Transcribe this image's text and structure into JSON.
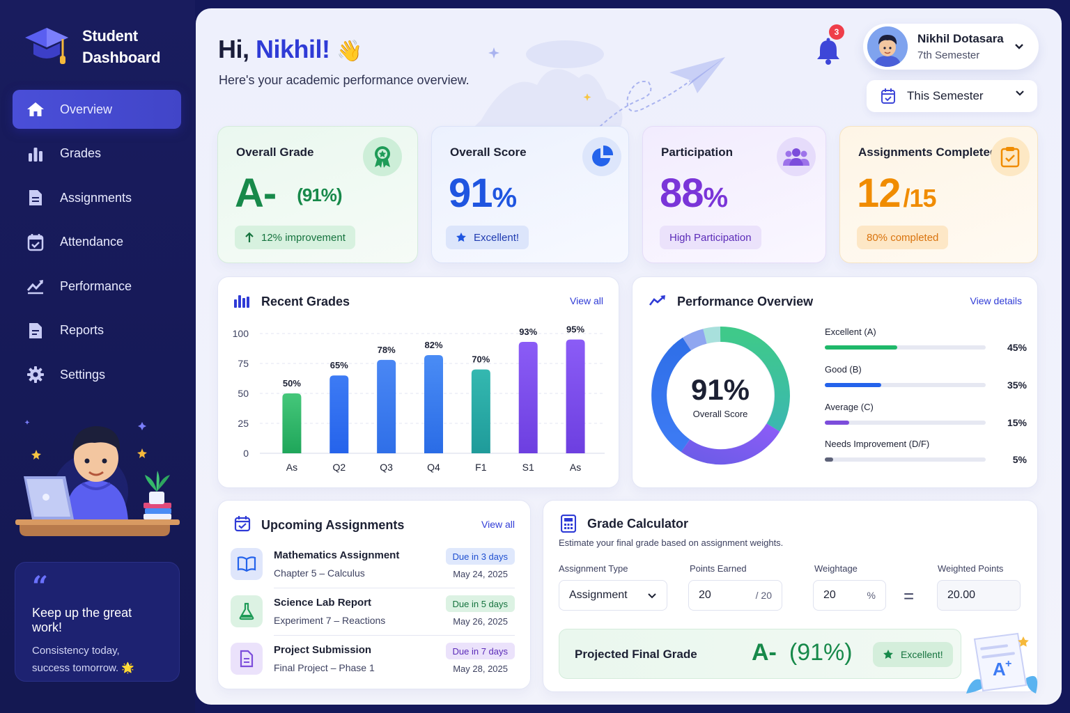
{
  "app": {
    "title_line1": "Student",
    "title_line2": "Dashboard"
  },
  "sidebar": {
    "items": [
      {
        "label": "Overview",
        "icon": "home-icon",
        "active": true
      },
      {
        "label": "Grades",
        "icon": "bar-chart-icon"
      },
      {
        "label": "Assignments",
        "icon": "document-icon"
      },
      {
        "label": "Attendance",
        "icon": "calendar-check-icon"
      },
      {
        "label": "Performance",
        "icon": "trend-chart-icon"
      },
      {
        "label": "Reports",
        "icon": "report-icon"
      },
      {
        "label": "Settings",
        "icon": "gear-icon"
      }
    ],
    "quote": {
      "title": "Keep up the great work!",
      "line1": "Consistency today,",
      "line2": "success tomorrow. 🌟"
    }
  },
  "header": {
    "greeting": "Hi,",
    "name": "Nikhil!",
    "wave": "👋",
    "subtitle": "Here's your academic performance overview.",
    "notifications": "3",
    "profile": {
      "name": "Nikhil Dotasara",
      "semester": "7th Semester"
    },
    "period": "This Semester"
  },
  "stats": {
    "grade": {
      "title": "Overall Grade",
      "value": "A-",
      "pct": "(91%)",
      "pill": "12% improvement"
    },
    "score": {
      "title": "Overall Score",
      "value": "91",
      "unit": "%",
      "pill": "Excellent!"
    },
    "participation": {
      "title": "Participation",
      "value": "88",
      "unit": "%",
      "pill": "High Participation"
    },
    "assignments": {
      "title": "Assignments Completed",
      "value": "12",
      "unit": "/15",
      "pill": "80% completed"
    }
  },
  "recent_grades": {
    "title": "Recent Grades",
    "view_all": "View all",
    "chart_data": {
      "type": "bar",
      "categories": [
        "As",
        "Q2",
        "Q3",
        "Q4",
        "F1",
        "S1",
        "As"
      ],
      "values": [
        50,
        65,
        78,
        82,
        70,
        93,
        95
      ],
      "value_labels": [
        "50%",
        "65%",
        "78%",
        "82%",
        "70%",
        "93%",
        "95%"
      ],
      "yticks": [
        "0",
        "25",
        "50",
        "75",
        "100"
      ],
      "ylim": [
        0,
        100
      ],
      "colors": [
        [
          "#45c77a",
          "#1fa65a"
        ],
        [
          "#3d7bf4",
          "#2563eb"
        ],
        [
          "#4a87f4",
          "#2f6fe8"
        ],
        [
          "#4a8cf5",
          "#2a6ce6"
        ],
        [
          "#34b8b0",
          "#1f9b9a"
        ],
        [
          "#8b5cf6",
          "#6d3fe0"
        ],
        [
          "#8b5cf6",
          "#6d3fe0"
        ]
      ],
      "grid": true
    }
  },
  "performance": {
    "title": "Performance Overview",
    "view_details": "View details",
    "center_value": "91%",
    "center_label": "Overall Score",
    "rows": [
      {
        "label": "Excellent (A)",
        "pct": "45%",
        "value": 45,
        "color": "#1fb86a"
      },
      {
        "label": "Good (B)",
        "pct": "35%",
        "value": 35,
        "color": "#2463eb"
      },
      {
        "label": "Average (C)",
        "pct": "15%",
        "value": 15,
        "color": "#7c4ddb"
      },
      {
        "label": "Needs Improvement (D/F)",
        "pct": "5%",
        "value": 5,
        "color": "#5d6278"
      }
    ]
  },
  "upcoming": {
    "title": "Upcoming Assignments",
    "view_all": "View all",
    "items": [
      {
        "title": "Mathematics Assignment",
        "sub": "Chapter 5 – Calculus",
        "due": "Due in 3 days",
        "date": "May 24, 2025",
        "icon": "book-icon"
      },
      {
        "title": "Science Lab Report",
        "sub": "Experiment 7 – Reactions",
        "due": "Due in 5 days",
        "date": "May 26, 2025",
        "icon": "flask-icon"
      },
      {
        "title": "Project Submission",
        "sub": "Final Project – Phase 1",
        "due": "Due in 7 days",
        "date": "May 28, 2025",
        "icon": "file-icon"
      }
    ]
  },
  "calculator": {
    "title": "Grade Calculator",
    "subtitle": "Estimate your final grade based on assignment weights.",
    "labels": {
      "type": "Assignment Type",
      "earned": "Points Earned",
      "weight": "Weightage",
      "weighted": "Weighted Points"
    },
    "type_value": "Assignment",
    "earned_value": "20",
    "earned_total": "/ 20",
    "weight_value": "20",
    "weight_unit": "%",
    "equals": "=",
    "weighted_value": "20.00",
    "projected_label": "Projected Final Grade",
    "projected_grade": "A-",
    "projected_pct": "(91%)",
    "projected_badge": "Excellent!"
  }
}
